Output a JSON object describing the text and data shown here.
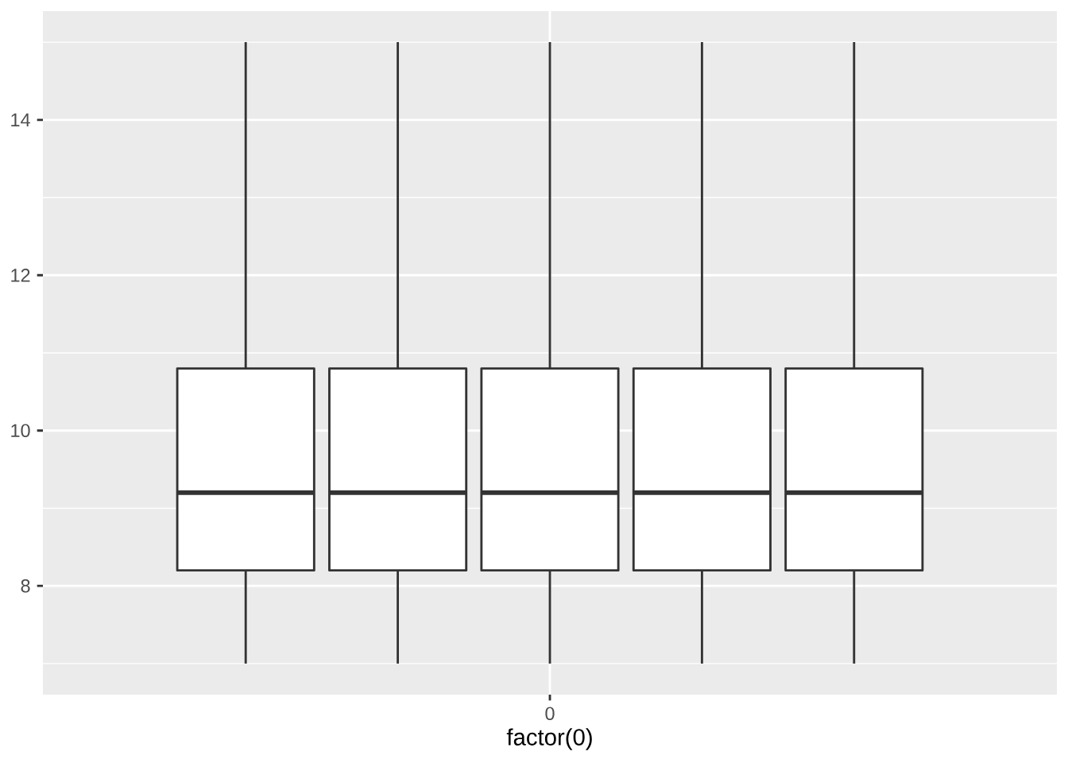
{
  "chart_data": {
    "type": "box",
    "xlabel": "factor(0)",
    "categories": [
      "0"
    ],
    "series": [
      {
        "boxes": [
          {
            "low": 7,
            "q1": 8.2,
            "median": 9.2,
            "q3": 10.8,
            "high": 15
          }
        ]
      },
      {
        "boxes": [
          {
            "low": 7,
            "q1": 8.2,
            "median": 9.2,
            "q3": 10.8,
            "high": 15
          }
        ]
      },
      {
        "boxes": [
          {
            "low": 7,
            "q1": 8.2,
            "median": 9.2,
            "q3": 10.8,
            "high": 15
          }
        ]
      },
      {
        "boxes": [
          {
            "low": 7,
            "q1": 8.2,
            "median": 9.2,
            "q3": 10.8,
            "high": 15
          }
        ]
      },
      {
        "boxes": [
          {
            "low": 7,
            "q1": 8.2,
            "median": 9.2,
            "q3": 10.8,
            "high": 15
          }
        ]
      }
    ],
    "ylim": [
      6.6,
      15.4
    ],
    "yticks": [
      8,
      10,
      12,
      14
    ],
    "grid": true
  }
}
